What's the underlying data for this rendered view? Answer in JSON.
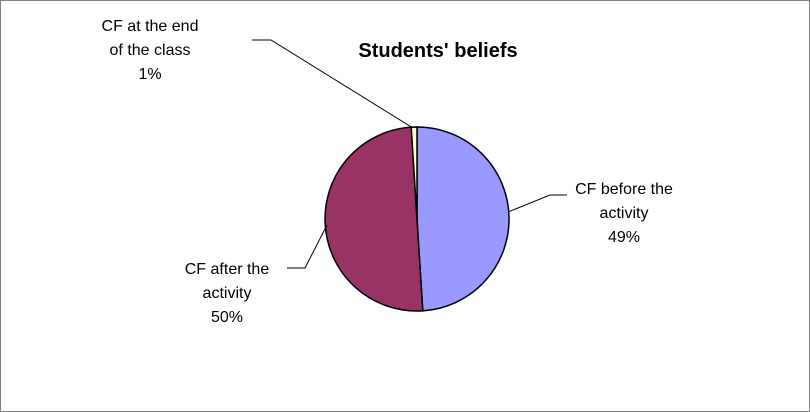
{
  "chart_data": {
    "type": "pie",
    "title": "Students' beliefs",
    "slices": [
      {
        "label": [
          "CF before the",
          "activity"
        ],
        "name": "CF before the activity",
        "value": 49,
        "percent_label": "49%",
        "color": "#9999ff"
      },
      {
        "label": [
          "CF after the",
          "activity"
        ],
        "name": "CF after the activity",
        "value": 50,
        "percent_label": "50%",
        "color": "#993366"
      },
      {
        "label": [
          "CF at the end",
          "of the class"
        ],
        "name": "CF at the end of the class",
        "value": 1,
        "percent_label": "1%",
        "color": "#ffffcc"
      }
    ],
    "start_angle_deg": 90,
    "direction": "clockwise",
    "legend": "none"
  }
}
